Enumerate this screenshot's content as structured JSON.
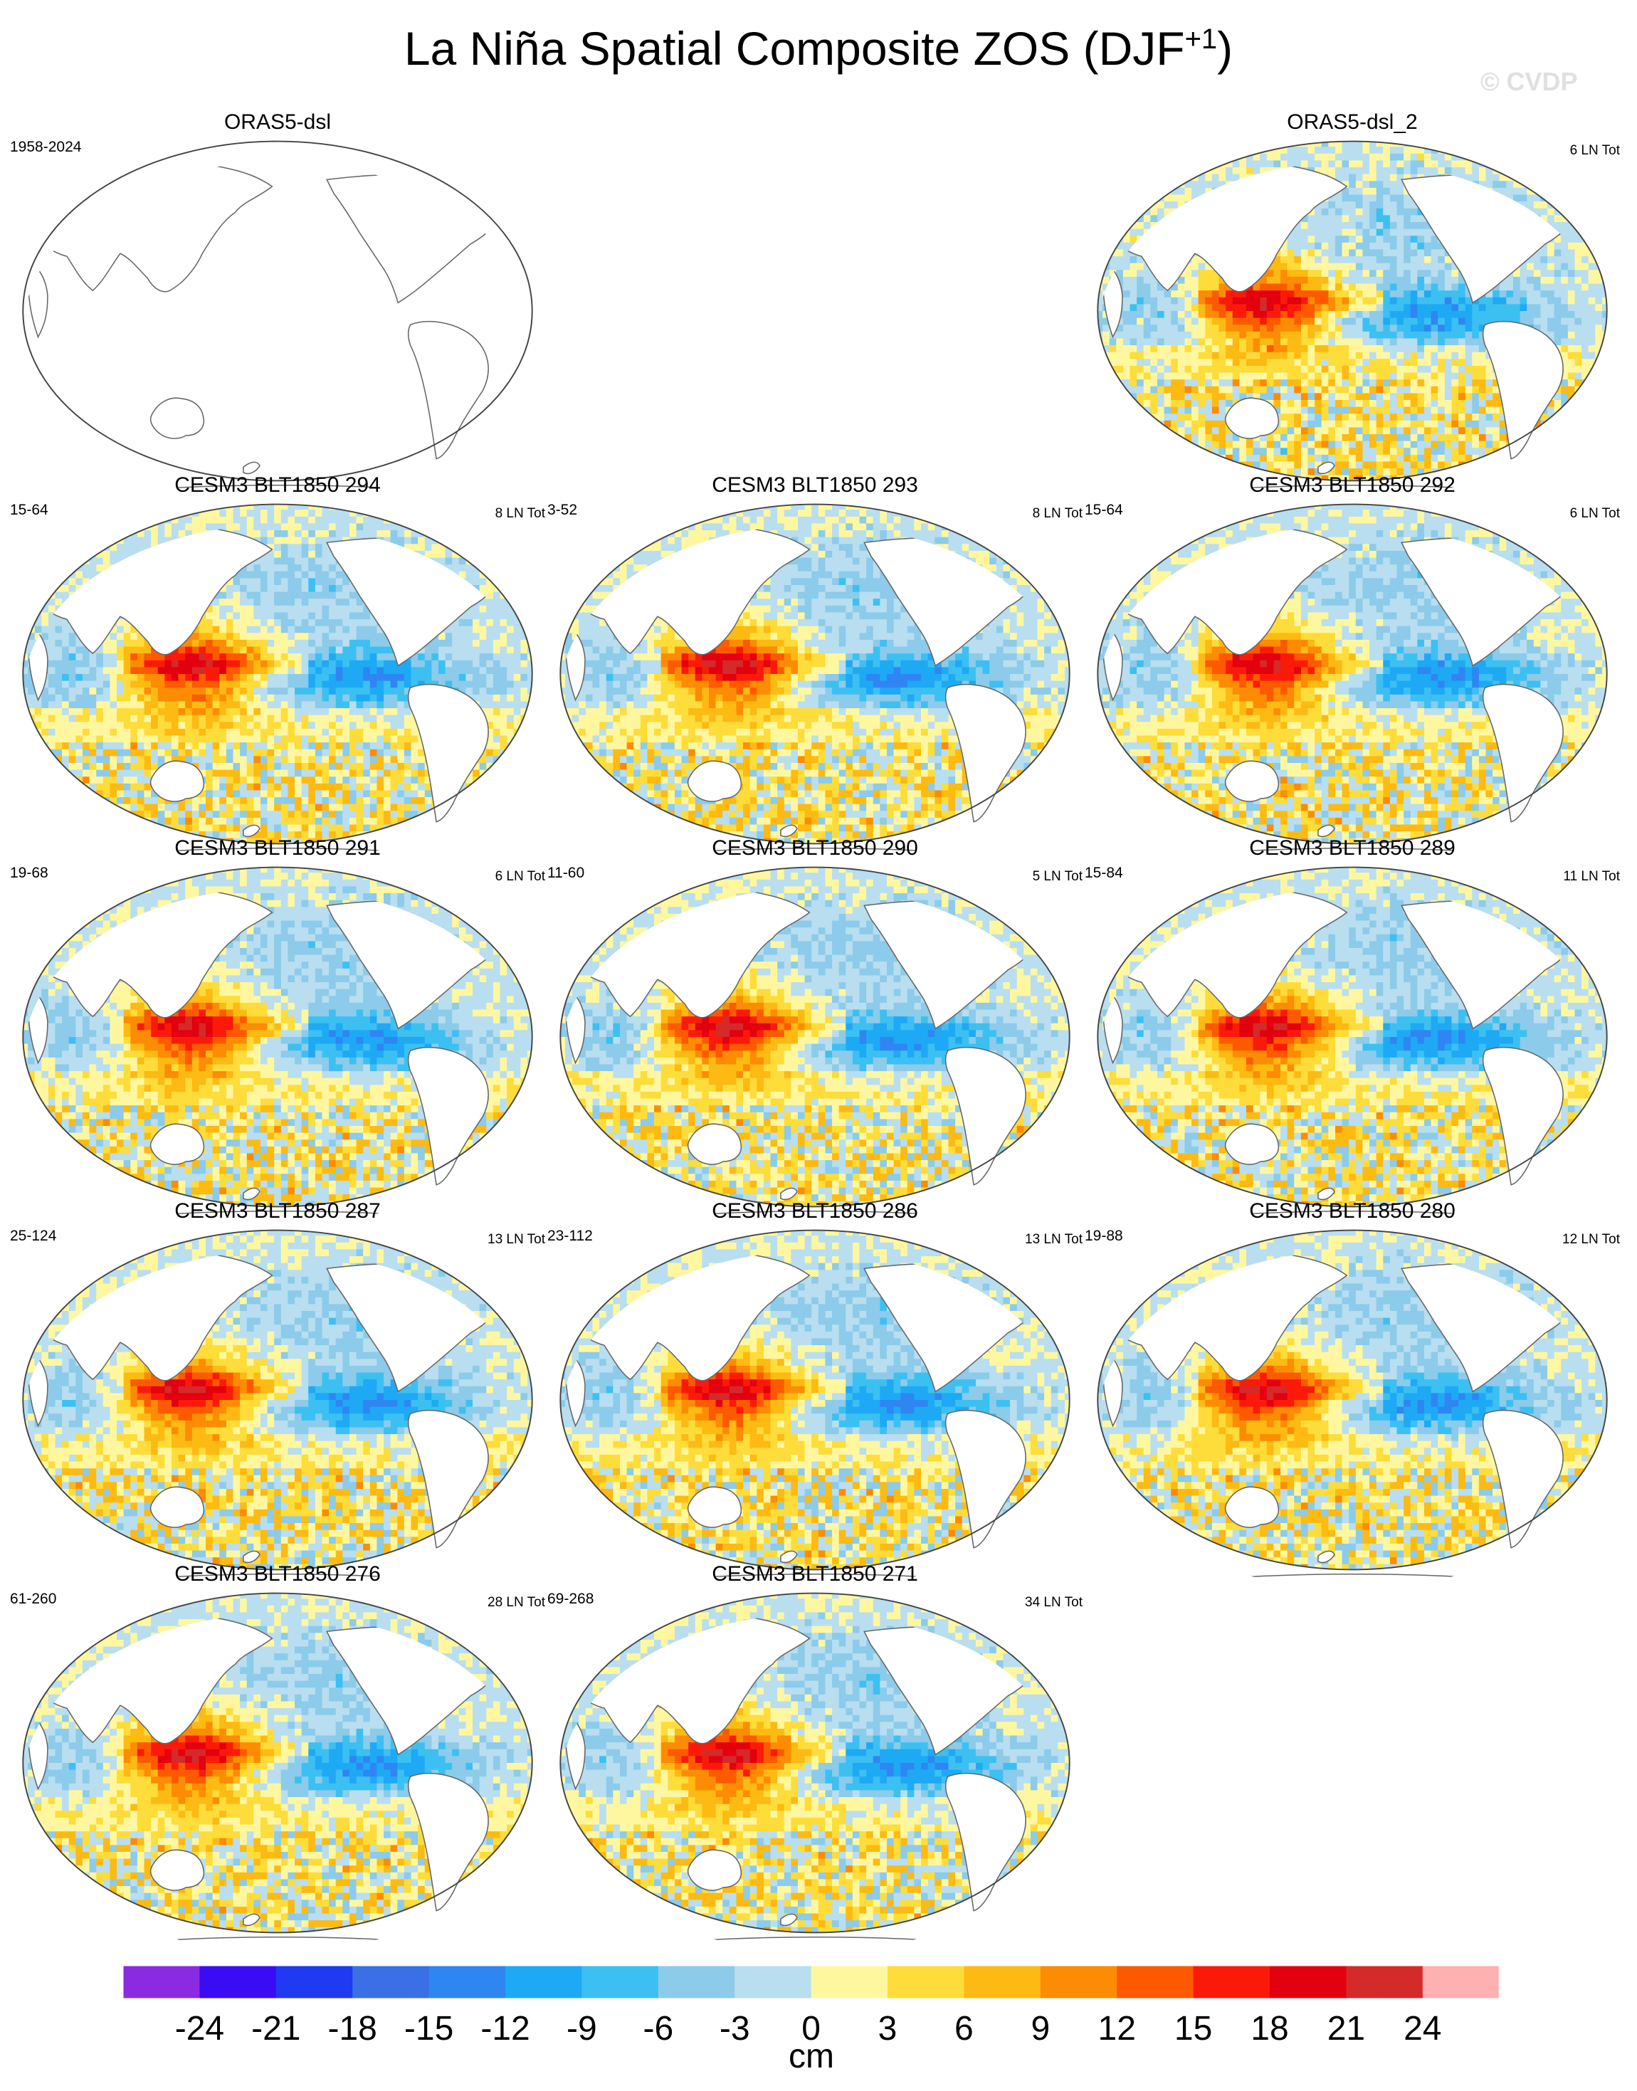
{
  "title_main": "La Niña Spatial Composite ZOS (DJF",
  "title_sup": "+1",
  "title_end": ")",
  "watermark": "© CVDP",
  "panels": [
    {
      "title": "ORAS5-dsl",
      "time": "1958-2024",
      "count": "",
      "blank": true,
      "seed": 11
    },
    {
      "title": "ORAS5-dsl_2",
      "time": "",
      "count": "6 LN Tot",
      "blank": false,
      "seed": 23
    },
    {
      "title": "CESM3 BLT1850 294",
      "time": "15-64",
      "count": "8 LN Tot",
      "blank": false,
      "seed": 37
    },
    {
      "title": "CESM3 BLT1850 293",
      "time": "3-52",
      "count": "8 LN Tot",
      "blank": false,
      "seed": 41
    },
    {
      "title": "CESM3 BLT1850 292",
      "time": "15-64",
      "count": "6 LN Tot",
      "blank": false,
      "seed": 53
    },
    {
      "title": "CESM3 BLT1850 291",
      "time": "19-68",
      "count": "6 LN Tot",
      "blank": false,
      "seed": 67
    },
    {
      "title": "CESM3 BLT1850 290",
      "time": "11-60",
      "count": "5 LN Tot",
      "blank": false,
      "seed": 71
    },
    {
      "title": "CESM3 BLT1850 289",
      "time": "15-84",
      "count": "11 LN Tot",
      "blank": false,
      "seed": 83
    },
    {
      "title": "CESM3 BLT1850 287",
      "time": "25-124",
      "count": "13 LN Tot",
      "blank": false,
      "seed": 97
    },
    {
      "title": "CESM3 BLT1850 286",
      "time": "23-112",
      "count": "13 LN Tot",
      "blank": false,
      "seed": 101
    },
    {
      "title": "CESM3 BLT1850 280",
      "time": "19-88",
      "count": "12 LN Tot",
      "blank": false,
      "seed": 113
    },
    {
      "title": "CESM3 BLT1850 276",
      "time": "61-260",
      "count": "28 LN Tot",
      "blank": false,
      "seed": 127
    },
    {
      "title": "CESM3 BLT1850 271",
      "time": "69-268",
      "count": "34 LN Tot",
      "blank": false,
      "seed": 131
    }
  ],
  "colorbar": {
    "colors": [
      "#8a2be2",
      "#3a0cf5",
      "#1f3af0",
      "#3a6fe6",
      "#2f86f2",
      "#1ea9f5",
      "#3cc0f2",
      "#8ccbea",
      "#b8def0",
      "#fff7a0",
      "#fedc3a",
      "#fdba12",
      "#fd8c05",
      "#fd5a00",
      "#fb1a0a",
      "#e3000f",
      "#d42a2a",
      "#ffb0b0"
    ],
    "labels": [
      "-24",
      "-21",
      "-18",
      "-15",
      "-12",
      "-9",
      "-6",
      "-3",
      "0",
      "3",
      "6",
      "9",
      "12",
      "15",
      "18",
      "21",
      "24"
    ],
    "unit": "cm"
  }
}
